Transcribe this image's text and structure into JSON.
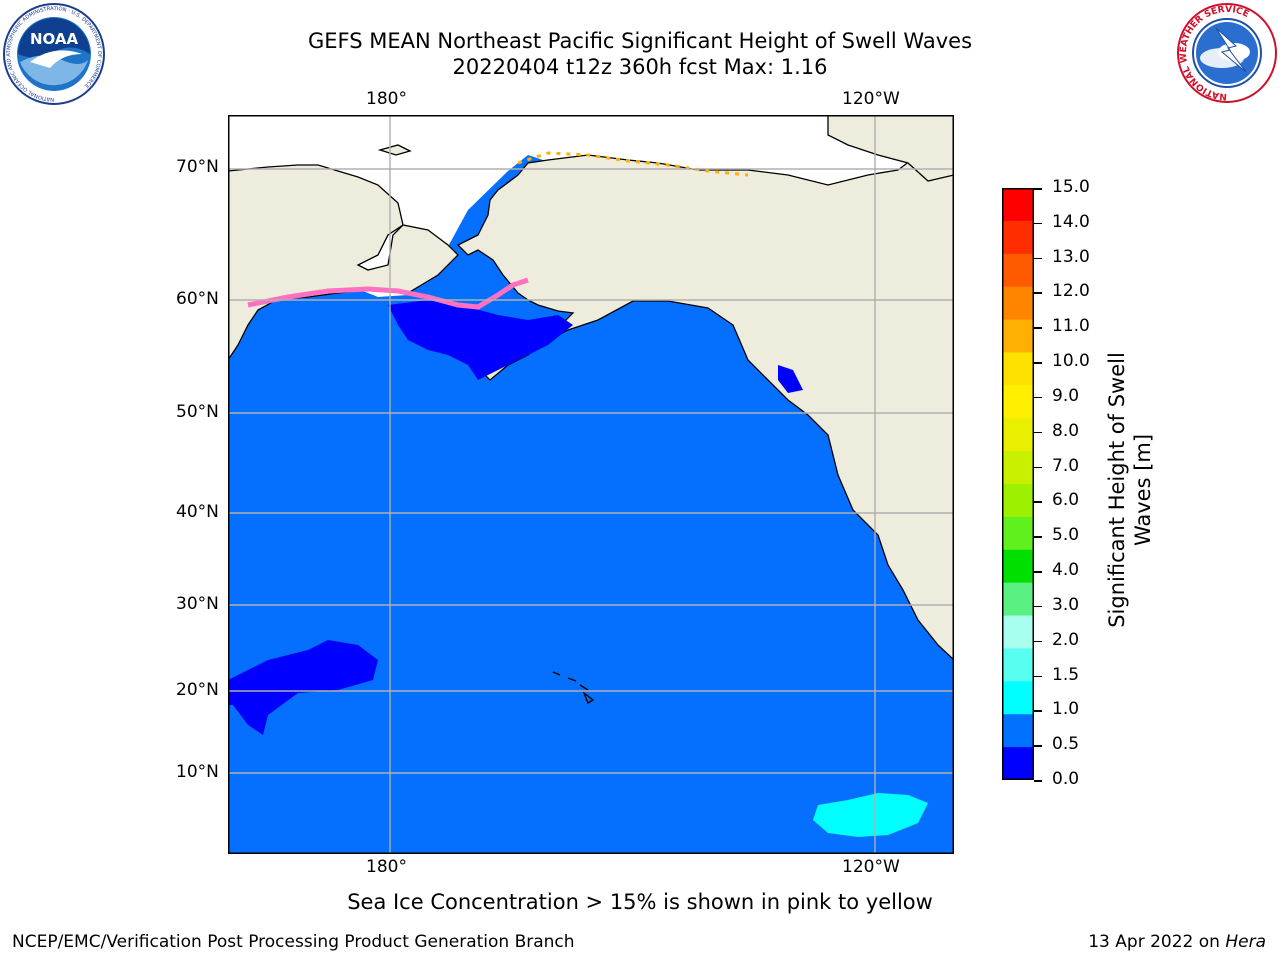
{
  "header": {
    "title_line1": "GEFS MEAN Northeast Pacific Significant Height of Swell Waves",
    "title_line2": "20220404 t12z 360h fcst   Max: 1.16"
  },
  "logos": {
    "left": {
      "name": "NOAA",
      "ring_text": "NATIONAL OCEANIC AND ATMOSPHERIC ADMINISTRATION · U.S. DEPARTMENT OF COMMERCE",
      "center_text": "NOAA"
    },
    "right": {
      "name": "National Weather Service",
      "ring_text": "NATIONAL WEATHER SERVICE"
    }
  },
  "map": {
    "lon_labels_top": [
      "180°",
      "120°W"
    ],
    "lon_labels_bottom": [
      "180°",
      "120°W"
    ],
    "lat_labels": [
      "70°N",
      "60°N",
      "50°N",
      "40°N",
      "30°N",
      "20°N",
      "10°N"
    ],
    "colors": {
      "ocean_main": "#0570ff",
      "ocean_low": "#0000ff",
      "land": "#eeecdc",
      "ice_white": "#ffffff",
      "grid": "#b0b0b0"
    }
  },
  "colorbar": {
    "title": "Significant Height of Swell Waves [m]",
    "title_line1": "Significant Height of Swell",
    "title_line2": "Waves [m]",
    "labels": [
      "15.0",
      "14.0",
      "13.0",
      "12.0",
      "11.0",
      "10.0",
      "9.0",
      "8.0",
      "7.0",
      "6.0",
      "5.0",
      "4.0",
      "3.0",
      "2.0",
      "1.5",
      "1.0",
      "0.5",
      "0.0"
    ],
    "colors_top_to_bottom": [
      "#ff0000",
      "#ff2d00",
      "#ff5a00",
      "#ff8400",
      "#ffb000",
      "#ffe100",
      "#fff000",
      "#e8f000",
      "#c8f000",
      "#9cf000",
      "#5ff01e",
      "#00e000",
      "#5bf082",
      "#a8fff0",
      "#58fff0",
      "#00ffff",
      "#0070ff",
      "#0000ff"
    ]
  },
  "footer": {
    "note": "Sea Ice Concentration > 15% is shown in pink to yellow",
    "left": "NCEP/EMC/Verification Post Processing Product Generation Branch",
    "right_date": "13 Apr 2022 on ",
    "right_host": "Hera"
  }
}
